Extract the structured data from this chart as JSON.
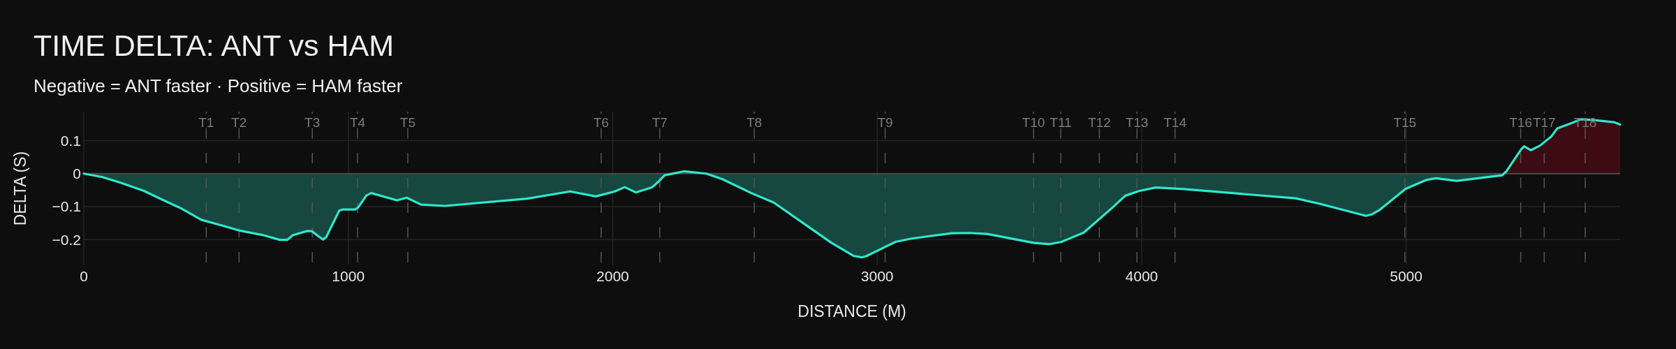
{
  "chart_data": {
    "type": "area",
    "title": "TIME DELTA: ANT vs HAM",
    "subtitle": "Negative = ANT faster · Positive = HAM faster",
    "xlabel": "DISTANCE (M)",
    "ylabel": "DELTA (S)",
    "x": [
      0,
      68,
      141,
      226,
      299,
      372,
      444,
      529,
      590,
      675,
      741,
      769,
      790,
      845,
      863,
      887,
      905,
      917,
      966,
      978,
      1026,
      1039,
      1069,
      1087,
      1184,
      1221,
      1275,
      1366,
      1675,
      1839,
      1936,
      2008,
      2045,
      2087,
      2148,
      2172,
      2196,
      2269,
      2354,
      2415,
      2524,
      2609,
      2718,
      2827,
      2912,
      2942,
      2960,
      3069,
      3130,
      3282,
      3348,
      3415,
      3591,
      3652,
      3697,
      3781,
      3888,
      3938,
      3989,
      4053,
      4160,
      4583,
      4676,
      4848,
      4869,
      4898,
      4998,
      5077,
      5112,
      5191,
      5363,
      5380,
      5435,
      5446,
      5471,
      5506,
      5549,
      5571,
      5628,
      5660,
      5706,
      5786,
      5809
    ],
    "series": [
      {
        "color": "#164840",
        "values": [
          0,
          -0.01,
          -0.028,
          -0.052,
          -0.08,
          -0.107,
          -0.14,
          -0.159,
          -0.173,
          -0.186,
          -0.201,
          -0.201,
          -0.187,
          -0.174,
          -0.175,
          -0.19,
          -0.2,
          -0.192,
          -0.112,
          -0.109,
          -0.109,
          -0.101,
          -0.066,
          -0.059,
          -0.081,
          -0.073,
          -0.094,
          -0.098,
          -0.076,
          -0.054,
          -0.069,
          -0.054,
          -0.041,
          -0.057,
          -0.042,
          -0.025,
          -0.005,
          0,
          0,
          -0.017,
          -0.059,
          -0.088,
          -0.149,
          -0.21,
          -0.25,
          -0.254,
          -0.25,
          -0.207,
          -0.197,
          -0.181,
          -0.18,
          -0.183,
          -0.21,
          -0.214,
          -0.207,
          -0.179,
          -0.104,
          -0.067,
          -0.053,
          -0.042,
          -0.047,
          -0.075,
          -0.092,
          -0.128,
          -0.124,
          -0.111,
          -0.046,
          -0.019,
          -0.014,
          -0.022,
          -0.005,
          0,
          0,
          0,
          0,
          0,
          0,
          0,
          0,
          0,
          0,
          0,
          0
        ]
      },
      {
        "color": "#3d0c12",
        "values": [
          0,
          0,
          0,
          0,
          0,
          0,
          0,
          0,
          0,
          0,
          0,
          0,
          0,
          0,
          0,
          0,
          0,
          0,
          0,
          0,
          0,
          0,
          0,
          0,
          0,
          0,
          0,
          0,
          0,
          0,
          0,
          0,
          0,
          0,
          0,
          0,
          0,
          0.007,
          0,
          0,
          0,
          0,
          0,
          0,
          0,
          0,
          0,
          0,
          0,
          0,
          0,
          0,
          0,
          0,
          0,
          0,
          0,
          0,
          0,
          0,
          0,
          0,
          0,
          0,
          0,
          0,
          0,
          0,
          0,
          0,
          0,
          0.008,
          0.074,
          0.083,
          0.071,
          0.085,
          0.113,
          0.137,
          0.154,
          0.165,
          0.163,
          0.156,
          0.149
        ]
      },
      {
        "type": "line",
        "color": "#2ee8cc",
        "values": [
          0,
          -0.01,
          -0.028,
          -0.052,
          -0.08,
          -0.107,
          -0.14,
          -0.159,
          -0.173,
          -0.186,
          -0.201,
          -0.201,
          -0.187,
          -0.174,
          -0.175,
          -0.19,
          -0.2,
          -0.192,
          -0.112,
          -0.109,
          -0.109,
          -0.101,
          -0.066,
          -0.059,
          -0.081,
          -0.073,
          -0.094,
          -0.098,
          -0.076,
          -0.054,
          -0.069,
          -0.054,
          -0.041,
          -0.057,
          -0.042,
          -0.025,
          -0.005,
          0.007,
          0.0,
          -0.017,
          -0.059,
          -0.088,
          -0.149,
          -0.21,
          -0.25,
          -0.254,
          -0.25,
          -0.207,
          -0.197,
          -0.181,
          -0.18,
          -0.183,
          -0.21,
          -0.214,
          -0.207,
          -0.179,
          -0.104,
          -0.067,
          -0.053,
          -0.042,
          -0.047,
          -0.075,
          -0.092,
          -0.128,
          -0.124,
          -0.111,
          -0.046,
          -0.019,
          -0.014,
          -0.022,
          -0.005,
          0.008,
          0.074,
          0.083,
          0.071,
          0.085,
          0.113,
          0.137,
          0.154,
          0.165,
          0.163,
          0.156,
          0.149
        ]
      }
    ],
    "xlim": [
      0,
      5809
    ],
    "ylim": [
      -0.278,
      0.188
    ],
    "xticks": [
      0,
      1000,
      2000,
      3000,
      4000,
      5000
    ],
    "yticks": [
      {
        "value": -0.2,
        "label": "−0.2"
      },
      {
        "value": -0.1,
        "label": "−0.1"
      },
      0,
      0.1
    ],
    "grid": true,
    "ref_lines": [
      {
        "axis": "x",
        "value": 463,
        "label": "T1",
        "color": "#555555",
        "line_style": "dashed"
      },
      {
        "axis": "x",
        "value": 587,
        "label": "T2",
        "color": "#555555",
        "line_style": "dashed"
      },
      {
        "axis": "x",
        "value": 864,
        "label": "T3",
        "color": "#555555",
        "line_style": "dashed"
      },
      {
        "axis": "x",
        "value": 1035,
        "label": "T4",
        "color": "#555555",
        "line_style": "dashed"
      },
      {
        "axis": "x",
        "value": 1225,
        "label": "T5",
        "color": "#555555",
        "line_style": "dashed"
      },
      {
        "axis": "x",
        "value": 1956,
        "label": "T6",
        "color": "#555555",
        "line_style": "dashed"
      },
      {
        "axis": "x",
        "value": 2178,
        "label": "T7",
        "color": "#555555",
        "line_style": "dashed"
      },
      {
        "axis": "x",
        "value": 2535,
        "label": "T8",
        "color": "#555555",
        "line_style": "dashed"
      },
      {
        "axis": "x",
        "value": 3030,
        "label": "T9",
        "color": "#555555",
        "line_style": "dashed"
      },
      {
        "axis": "x",
        "value": 3591,
        "label": "T10",
        "color": "#555555",
        "line_style": "dashed"
      },
      {
        "axis": "x",
        "value": 3694,
        "label": "T11",
        "color": "#555555",
        "line_style": "dashed"
      },
      {
        "axis": "x",
        "value": 3840,
        "label": "T12",
        "color": "#555555",
        "line_style": "dashed"
      },
      {
        "axis": "x",
        "value": 3982,
        "label": "T13",
        "color": "#555555",
        "line_style": "dashed"
      },
      {
        "axis": "x",
        "value": 4126,
        "label": "T14",
        "color": "#555555",
        "line_style": "dashed"
      },
      {
        "axis": "x",
        "value": 4995,
        "label": "T15",
        "color": "#555555",
        "line_style": "dashed"
      },
      {
        "axis": "x",
        "value": 5433,
        "label": "T16",
        "color": "#555555",
        "line_style": "dashed"
      },
      {
        "axis": "x",
        "value": 5522,
        "label": "T17",
        "color": "#555555",
        "line_style": "dashed"
      },
      {
        "axis": "x",
        "value": 5677,
        "label": "T18",
        "color": "#555555",
        "line_style": "dashed"
      }
    ]
  }
}
